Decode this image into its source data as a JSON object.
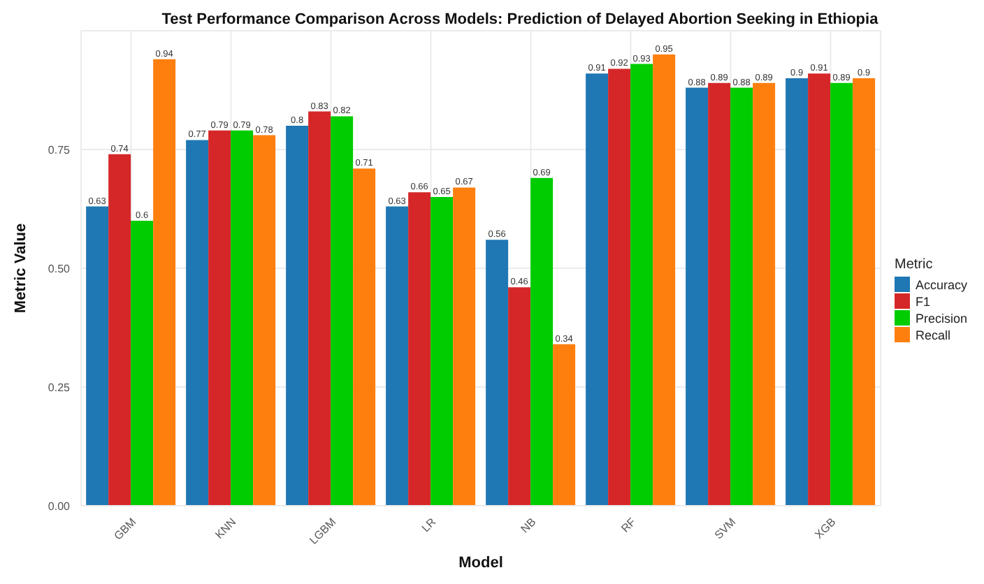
{
  "chart_data": {
    "type": "bar",
    "title": "Test Performance Comparison Across Models: Prediction of Delayed Abortion Seeking in Ethiopia",
    "xlabel": "Model",
    "ylabel": "Metric Value",
    "legend_title": "Metric",
    "categories": [
      "GBM",
      "KNN",
      "LGBM",
      "LR",
      "NB",
      "RF",
      "SVM",
      "XGB"
    ],
    "series": [
      {
        "name": "Accuracy",
        "color": "#1f77b4",
        "values": [
          0.63,
          0.77,
          0.8,
          0.63,
          0.56,
          0.91,
          0.88,
          0.9
        ]
      },
      {
        "name": "F1",
        "color": "#d62728",
        "values": [
          0.74,
          0.79,
          0.83,
          0.66,
          0.46,
          0.92,
          0.89,
          0.91
        ]
      },
      {
        "name": "Precision",
        "color": "#00cc00",
        "values": [
          0.6,
          0.79,
          0.82,
          0.65,
          0.69,
          0.93,
          0.88,
          0.89
        ]
      },
      {
        "name": "Recall",
        "color": "#ff7f0e",
        "values": [
          0.94,
          0.78,
          0.71,
          0.67,
          0.34,
          0.95,
          0.89,
          0.9
        ]
      }
    ],
    "ylim": [
      0,
      1
    ],
    "yticks": [
      {
        "value": 0,
        "label": "0.00"
      },
      {
        "value": 0.25,
        "label": "0.25"
      },
      {
        "value": 0.5,
        "label": "0.50"
      },
      {
        "value": 0.75,
        "label": "0.75"
      }
    ],
    "grid": true,
    "legend": "right",
    "data_labels": true
  }
}
